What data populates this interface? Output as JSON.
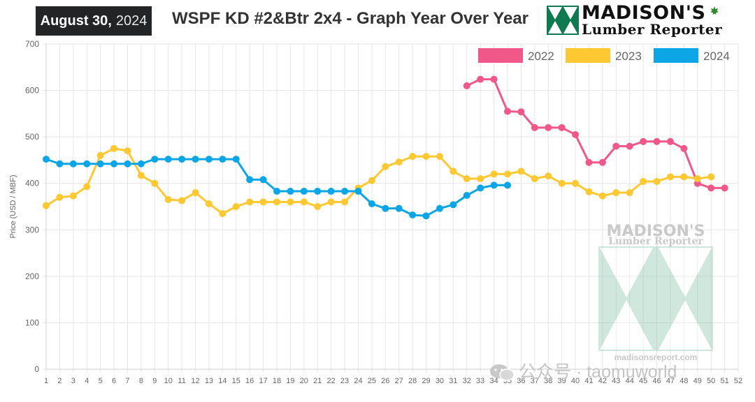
{
  "header": {
    "date_main": "August 30,",
    "date_year": "2024",
    "title": "WSPF KD #2&Btr 2x4 - Graph Year Over Year"
  },
  "logo": {
    "name_line1": "MADISON'S",
    "name_line2": "Lumber Reporter",
    "icon": "madisons-triangle-logo-icon",
    "maple_leaf_color": "#2e8b2e"
  },
  "watermark": {
    "line1": "MADISON'S",
    "line2": "Lumber Reporter",
    "url": "madisonsreport.com",
    "footer": "公众号 · taomuworld",
    "footer_icon": "wechat-icon"
  },
  "chart_data": {
    "type": "line",
    "title": "WSPF KD #2&Btr 2x4 - Graph Year Over Year",
    "xlabel": "",
    "ylabel": "Price (USD / MBF)",
    "x": [
      1,
      2,
      3,
      4,
      5,
      6,
      7,
      8,
      9,
      10,
      11,
      12,
      13,
      14,
      15,
      16,
      17,
      18,
      19,
      20,
      21,
      22,
      23,
      24,
      25,
      26,
      27,
      28,
      29,
      30,
      31,
      32,
      33,
      34,
      35,
      36,
      37,
      38,
      39,
      40,
      41,
      42,
      43,
      44,
      45,
      46,
      47,
      48,
      49,
      50,
      51,
      52
    ],
    "xlim": [
      1,
      52
    ],
    "ylim": [
      0,
      700
    ],
    "yticks": [
      0,
      100,
      200,
      300,
      400,
      500,
      600,
      700
    ],
    "grid": true,
    "legend_position": "top-right",
    "series": [
      {
        "name": "2022",
        "color": "#f0588a",
        "x": [
          32,
          33,
          34,
          35,
          36,
          37,
          38,
          39,
          40,
          41,
          42,
          43,
          44,
          45,
          46,
          47,
          48,
          49,
          50,
          51
        ],
        "values": [
          610,
          624,
          624,
          555,
          554,
          520,
          520,
          520,
          505,
          445,
          445,
          480,
          480,
          490,
          490,
          490,
          475,
          400,
          390,
          390
        ]
      },
      {
        "name": "2023",
        "color": "#fdc831",
        "x": [
          1,
          2,
          3,
          4,
          5,
          6,
          7,
          8,
          9,
          10,
          11,
          12,
          13,
          14,
          15,
          16,
          17,
          18,
          19,
          20,
          21,
          22,
          23,
          24,
          25,
          26,
          27,
          28,
          29,
          30,
          31,
          32,
          33,
          34,
          35,
          36,
          37,
          38,
          39,
          40,
          41,
          42,
          43,
          44,
          45,
          46,
          47,
          48,
          49,
          50
        ],
        "values": [
          352,
          370,
          373,
          393,
          460,
          475,
          470,
          417,
          400,
          365,
          363,
          380,
          356,
          335,
          350,
          360,
          360,
          360,
          360,
          360,
          350,
          360,
          360,
          390,
          406,
          436,
          446,
          458,
          458,
          458,
          426,
          410,
          410,
          420,
          420,
          426,
          410,
          416,
          400,
          400,
          382,
          373,
          380,
          380,
          404,
          404,
          414,
          414,
          410,
          414
        ]
      },
      {
        "name": "2024",
        "color": "#0ca6e6",
        "x": [
          1,
          2,
          3,
          4,
          5,
          6,
          7,
          8,
          9,
          10,
          11,
          12,
          13,
          14,
          15,
          16,
          17,
          18,
          19,
          20,
          21,
          22,
          23,
          24,
          25,
          26,
          27,
          28,
          29,
          30,
          31,
          32,
          33,
          34,
          35
        ],
        "values": [
          452,
          442,
          442,
          442,
          442,
          442,
          442,
          442,
          452,
          452,
          452,
          452,
          452,
          452,
          452,
          408,
          408,
          383,
          383,
          383,
          383,
          383,
          383,
          383,
          356,
          346,
          346,
          332,
          330,
          346,
          354,
          374,
          390,
          396,
          396
        ]
      }
    ]
  }
}
